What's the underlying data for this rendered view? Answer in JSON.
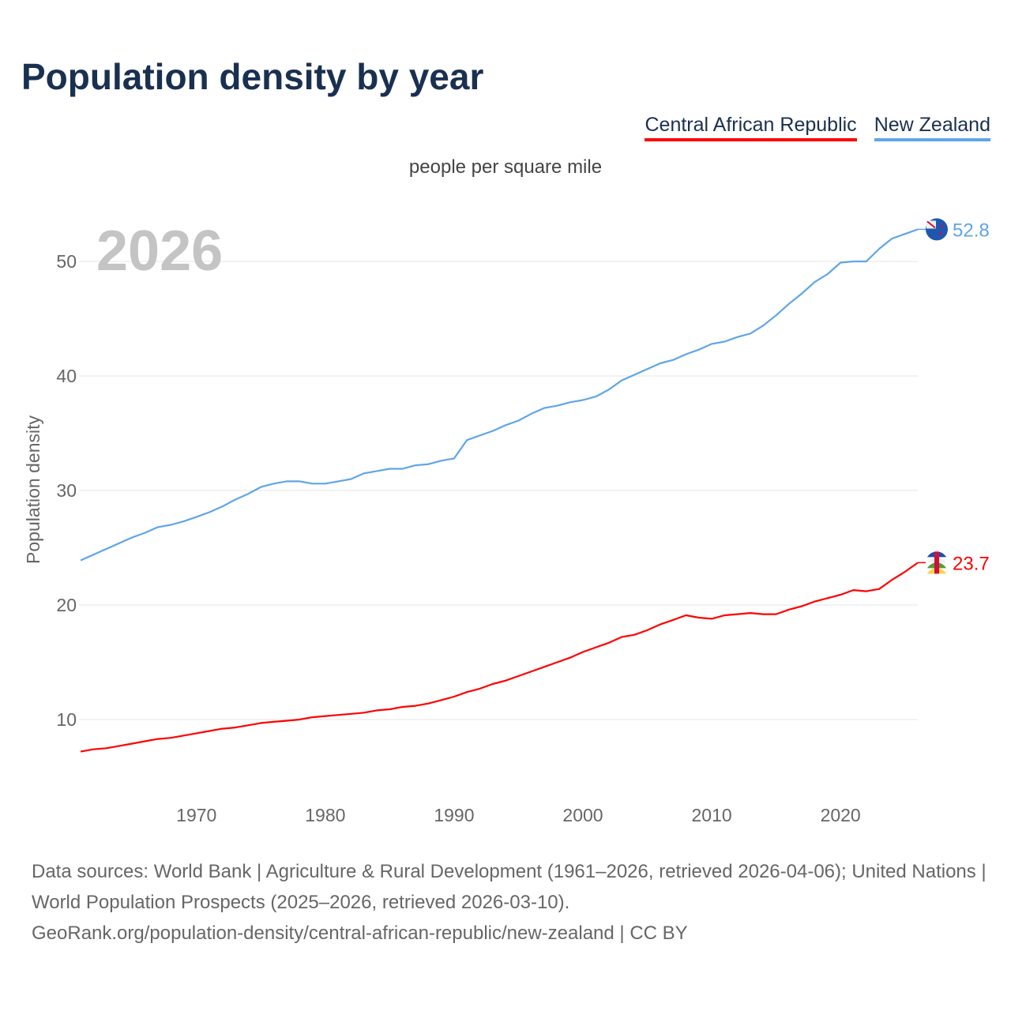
{
  "title": "Population density by year",
  "unit": "people per square mile",
  "footer": {
    "sources": "Data sources: World Bank | Agriculture & Rural Development (1961–2026, retrieved 2026-04-06); United Nations | World Population Prospects (2025–2026, retrieved 2026-03-10).",
    "link": "GeoRank.org/population-density/central-african-republic/new-zealand | CC BY"
  },
  "chart_data": {
    "type": "line",
    "title": "Population density by year",
    "subtitle": "people per square mile",
    "xlabel": "",
    "ylabel": "Population density",
    "year_label": "2026",
    "xlim": [
      1961,
      2026
    ],
    "ylim": [
      5,
      55
    ],
    "x_ticks": [
      1970,
      1980,
      1990,
      2000,
      2010,
      2020
    ],
    "y_ticks": [
      10,
      20,
      30,
      40,
      50
    ],
    "grid": true,
    "legend_position": "top-right",
    "x_start": 1961,
    "series": [
      {
        "name": "Central African Republic",
        "color": "#ff0000",
        "end_label": "23.7",
        "values": [
          7.2,
          7.4,
          7.5,
          7.7,
          7.9,
          8.1,
          8.3,
          8.4,
          8.6,
          8.8,
          9.0,
          9.2,
          9.3,
          9.5,
          9.7,
          9.8,
          9.9,
          10.0,
          10.2,
          10.3,
          10.4,
          10.5,
          10.6,
          10.8,
          10.9,
          11.1,
          11.2,
          11.4,
          11.7,
          12.0,
          12.4,
          12.7,
          13.1,
          13.4,
          13.8,
          14.2,
          14.6,
          15.0,
          15.4,
          15.9,
          16.3,
          16.7,
          17.2,
          17.4,
          17.8,
          18.3,
          18.7,
          19.1,
          18.9,
          18.8,
          19.1,
          19.2,
          19.3,
          19.2,
          19.2,
          19.6,
          19.9,
          20.3,
          20.6,
          20.9,
          21.3,
          21.2,
          21.4,
          22.2,
          22.9,
          23.7
        ]
      },
      {
        "name": "New Zealand",
        "color": "#5fa5e8",
        "end_label": "52.8",
        "values": [
          23.9,
          24.4,
          24.9,
          25.4,
          25.9,
          26.3,
          26.8,
          27.0,
          27.3,
          27.7,
          28.1,
          28.6,
          29.2,
          29.7,
          30.3,
          30.6,
          30.8,
          30.8,
          30.6,
          30.6,
          30.8,
          31.0,
          31.5,
          31.7,
          31.9,
          31.9,
          32.2,
          32.3,
          32.6,
          32.8,
          34.4,
          34.8,
          35.2,
          35.7,
          36.1,
          36.7,
          37.2,
          37.4,
          37.7,
          37.9,
          38.2,
          38.8,
          39.6,
          40.1,
          40.6,
          41.1,
          41.4,
          41.9,
          42.3,
          42.8,
          43.0,
          43.4,
          43.7,
          44.4,
          45.3,
          46.3,
          47.2,
          48.2,
          48.9,
          49.9,
          50.0,
          50.0,
          51.1,
          52.0,
          52.4,
          52.8
        ]
      }
    ]
  }
}
